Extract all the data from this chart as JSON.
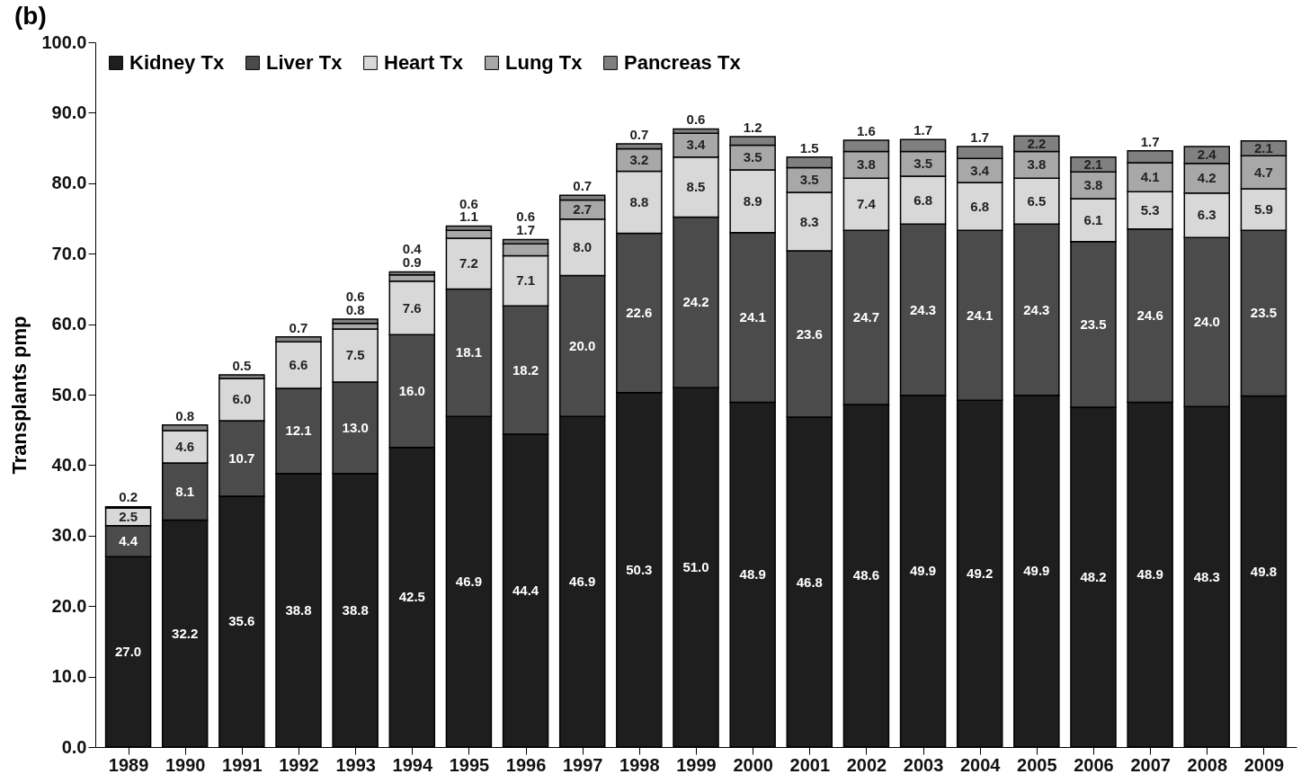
{
  "chart_data": {
    "type": "bar",
    "title": "(b)",
    "ylabel": "Transplants pmp",
    "stacked": true,
    "legend": "top left",
    "grid": false,
    "categories": [
      "1989",
      "1990",
      "1991",
      "1992",
      "1993",
      "1994",
      "1995",
      "1996",
      "1997",
      "1998",
      "1999",
      "2000",
      "2001",
      "2002",
      "2003",
      "2004",
      "2005",
      "2006",
      "2007",
      "2008",
      "2009"
    ],
    "ylim": [
      0,
      100
    ],
    "yticks": [
      {
        "value": 0,
        "label": "0.0"
      },
      {
        "value": 10,
        "label": "10.0"
      },
      {
        "value": 20,
        "label": "20.0"
      },
      {
        "value": 30,
        "label": "30.0"
      },
      {
        "value": 40,
        "label": "40.0"
      },
      {
        "value": 50,
        "label": "50.0"
      },
      {
        "value": 60,
        "label": "60.0"
      },
      {
        "value": 70,
        "label": "70.0"
      },
      {
        "value": 80,
        "label": "80.0"
      },
      {
        "value": 90,
        "label": "90.0"
      },
      {
        "value": 100,
        "label": "100.0"
      }
    ],
    "series": [
      {
        "name": "Kidney Tx",
        "color": "#1e1e1e",
        "values": [
          27.0,
          32.2,
          35.6,
          38.8,
          38.8,
          42.5,
          46.9,
          44.4,
          46.9,
          50.3,
          51.0,
          48.9,
          46.8,
          48.6,
          49.9,
          49.2,
          49.9,
          48.2,
          48.9,
          48.3,
          49.8
        ],
        "value_labels": [
          "27.0",
          "32.2",
          "35.6",
          "38.8",
          "38.8",
          "42.5",
          "46.9",
          "44.4",
          "46.9",
          "50.3",
          "51.0",
          "48.9",
          "46.8",
          "48.6",
          "49.9",
          "49.2",
          "49.9",
          "48.2",
          "48.9",
          "48.3",
          "49.8"
        ]
      },
      {
        "name": "Liver Tx",
        "color": "#4b4b4b",
        "values": [
          4.4,
          8.1,
          10.7,
          12.1,
          13.0,
          16.0,
          18.1,
          18.2,
          20.0,
          22.6,
          24.2,
          24.1,
          23.6,
          24.7,
          24.3,
          24.1,
          24.3,
          23.5,
          24.6,
          24.0,
          23.5
        ],
        "value_labels": [
          "4.4",
          "8.1",
          "10.7",
          "12.1",
          "13.0",
          "16.0",
          "18.1",
          "18.2",
          "20.0",
          "22.6",
          "24.2",
          "24.1",
          "23.6",
          "24.7",
          "24.3",
          "24.1",
          "24.3",
          "23.5",
          "24.6",
          "24.0",
          "23.5"
        ]
      },
      {
        "name": "Heart Tx",
        "color": "#d8d8d8",
        "values": [
          2.5,
          4.6,
          6.0,
          6.6,
          7.5,
          7.6,
          7.2,
          7.1,
          8.0,
          8.8,
          8.5,
          8.9,
          8.3,
          7.4,
          6.8,
          6.8,
          6.5,
          6.1,
          5.3,
          6.3,
          5.9
        ],
        "value_labels": [
          "2.5",
          "4.6",
          "6.0",
          "6.6",
          "7.5",
          "7.6",
          "7.2",
          "7.1",
          "8.0",
          "8.8",
          "8.5",
          "8.9",
          "8.3",
          "7.4",
          "6.8",
          "6.8",
          "6.5",
          "6.1",
          "5.3",
          "6.3",
          "5.9"
        ]
      },
      {
        "name": "Lung Tx",
        "color": "#a8a8a8",
        "values": [
          null,
          null,
          null,
          null,
          0.8,
          0.9,
          1.1,
          1.7,
          2.7,
          3.2,
          3.4,
          3.5,
          3.5,
          3.8,
          3.5,
          3.4,
          3.8,
          3.8,
          4.1,
          4.2,
          4.7
        ],
        "value_labels": [
          null,
          null,
          null,
          null,
          "0.8",
          "0.9",
          "1.1",
          "1.7",
          "2.7",
          "3.2",
          "3.4",
          "3.5",
          "3.5",
          "3.8",
          "3.5",
          "3.4",
          "3.8",
          "3.8",
          "4.1",
          "4.2",
          "4.7"
        ]
      },
      {
        "name": "Pancreas Tx",
        "color": "#808080",
        "values": [
          0.2,
          0.8,
          0.5,
          0.7,
          0.6,
          0.4,
          0.6,
          0.6,
          0.7,
          0.7,
          0.6,
          1.2,
          1.5,
          1.6,
          1.7,
          1.7,
          2.2,
          2.1,
          1.7,
          2.4,
          2.1
        ],
        "value_labels": [
          "0.2",
          "0.8",
          "0.5",
          "0.7",
          "0.6",
          "0.4",
          "0.6",
          "0.6",
          "0.7",
          "0.7",
          "0.6",
          "1.2",
          "1.5",
          "1.6",
          "1.7",
          "1.7",
          "2.2",
          "2.1",
          "1.7",
          "2.4",
          "2.1"
        ]
      }
    ]
  }
}
